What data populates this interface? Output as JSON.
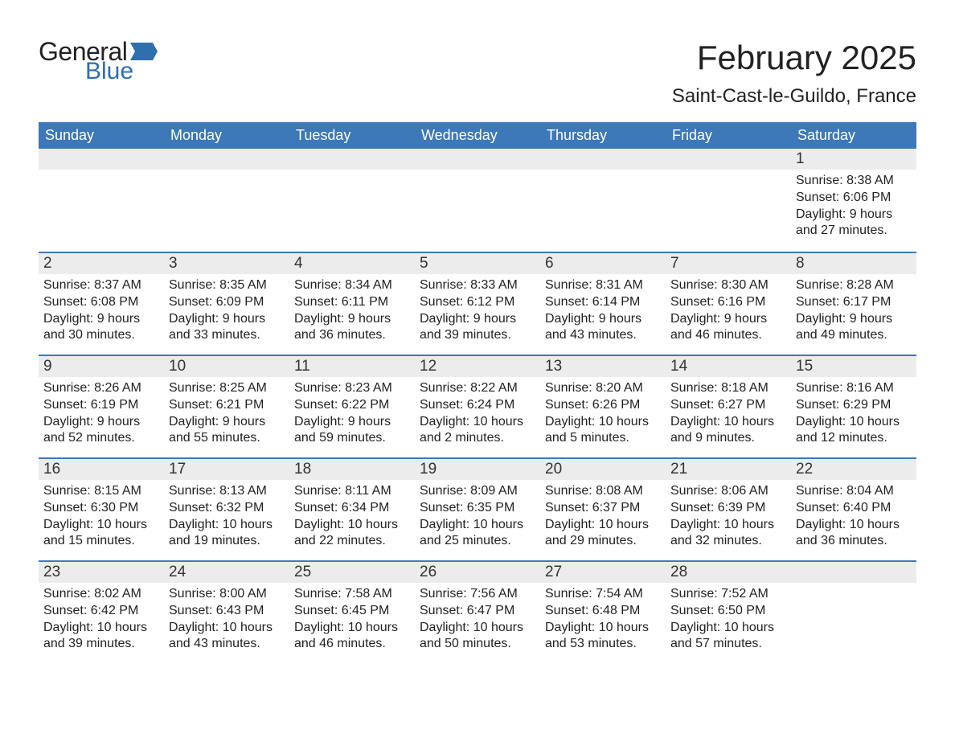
{
  "logo": {
    "general": "General",
    "blue": "Blue"
  },
  "title": "February 2025",
  "location": "Saint-Cast-le-Guildo, France",
  "colors": {
    "header_bg": "#3d78b8",
    "header_text": "#ffffff",
    "daynum_bg": "#ececec",
    "row_border": "#3d78b8",
    "body_text": "#222222",
    "logo_blue": "#2f6fae",
    "page_bg": "#ffffff"
  },
  "weekdays": [
    "Sunday",
    "Monday",
    "Tuesday",
    "Wednesday",
    "Thursday",
    "Friday",
    "Saturday"
  ],
  "layout": {
    "cols": 7,
    "rows": 5,
    "first_day_col": 6,
    "days_in_month": 28
  },
  "days": {
    "1": {
      "sunrise": "8:38 AM",
      "sunset": "6:06 PM",
      "daylight": "9 hours and 27 minutes."
    },
    "2": {
      "sunrise": "8:37 AM",
      "sunset": "6:08 PM",
      "daylight": "9 hours and 30 minutes."
    },
    "3": {
      "sunrise": "8:35 AM",
      "sunset": "6:09 PM",
      "daylight": "9 hours and 33 minutes."
    },
    "4": {
      "sunrise": "8:34 AM",
      "sunset": "6:11 PM",
      "daylight": "9 hours and 36 minutes."
    },
    "5": {
      "sunrise": "8:33 AM",
      "sunset": "6:12 PM",
      "daylight": "9 hours and 39 minutes."
    },
    "6": {
      "sunrise": "8:31 AM",
      "sunset": "6:14 PM",
      "daylight": "9 hours and 43 minutes."
    },
    "7": {
      "sunrise": "8:30 AM",
      "sunset": "6:16 PM",
      "daylight": "9 hours and 46 minutes."
    },
    "8": {
      "sunrise": "8:28 AM",
      "sunset": "6:17 PM",
      "daylight": "9 hours and 49 minutes."
    },
    "9": {
      "sunrise": "8:26 AM",
      "sunset": "6:19 PM",
      "daylight": "9 hours and 52 minutes."
    },
    "10": {
      "sunrise": "8:25 AM",
      "sunset": "6:21 PM",
      "daylight": "9 hours and 55 minutes."
    },
    "11": {
      "sunrise": "8:23 AM",
      "sunset": "6:22 PM",
      "daylight": "9 hours and 59 minutes."
    },
    "12": {
      "sunrise": "8:22 AM",
      "sunset": "6:24 PM",
      "daylight": "10 hours and 2 minutes."
    },
    "13": {
      "sunrise": "8:20 AM",
      "sunset": "6:26 PM",
      "daylight": "10 hours and 5 minutes."
    },
    "14": {
      "sunrise": "8:18 AM",
      "sunset": "6:27 PM",
      "daylight": "10 hours and 9 minutes."
    },
    "15": {
      "sunrise": "8:16 AM",
      "sunset": "6:29 PM",
      "daylight": "10 hours and 12 minutes."
    },
    "16": {
      "sunrise": "8:15 AM",
      "sunset": "6:30 PM",
      "daylight": "10 hours and 15 minutes."
    },
    "17": {
      "sunrise": "8:13 AM",
      "sunset": "6:32 PM",
      "daylight": "10 hours and 19 minutes."
    },
    "18": {
      "sunrise": "8:11 AM",
      "sunset": "6:34 PM",
      "daylight": "10 hours and 22 minutes."
    },
    "19": {
      "sunrise": "8:09 AM",
      "sunset": "6:35 PM",
      "daylight": "10 hours and 25 minutes."
    },
    "20": {
      "sunrise": "8:08 AM",
      "sunset": "6:37 PM",
      "daylight": "10 hours and 29 minutes."
    },
    "21": {
      "sunrise": "8:06 AM",
      "sunset": "6:39 PM",
      "daylight": "10 hours and 32 minutes."
    },
    "22": {
      "sunrise": "8:04 AM",
      "sunset": "6:40 PM",
      "daylight": "10 hours and 36 minutes."
    },
    "23": {
      "sunrise": "8:02 AM",
      "sunset": "6:42 PM",
      "daylight": "10 hours and 39 minutes."
    },
    "24": {
      "sunrise": "8:00 AM",
      "sunset": "6:43 PM",
      "daylight": "10 hours and 43 minutes."
    },
    "25": {
      "sunrise": "7:58 AM",
      "sunset": "6:45 PM",
      "daylight": "10 hours and 46 minutes."
    },
    "26": {
      "sunrise": "7:56 AM",
      "sunset": "6:47 PM",
      "daylight": "10 hours and 50 minutes."
    },
    "27": {
      "sunrise": "7:54 AM",
      "sunset": "6:48 PM",
      "daylight": "10 hours and 53 minutes."
    },
    "28": {
      "sunrise": "7:52 AM",
      "sunset": "6:50 PM",
      "daylight": "10 hours and 57 minutes."
    }
  },
  "labels": {
    "sunrise": "Sunrise:",
    "sunset": "Sunset:",
    "daylight": "Daylight:"
  }
}
